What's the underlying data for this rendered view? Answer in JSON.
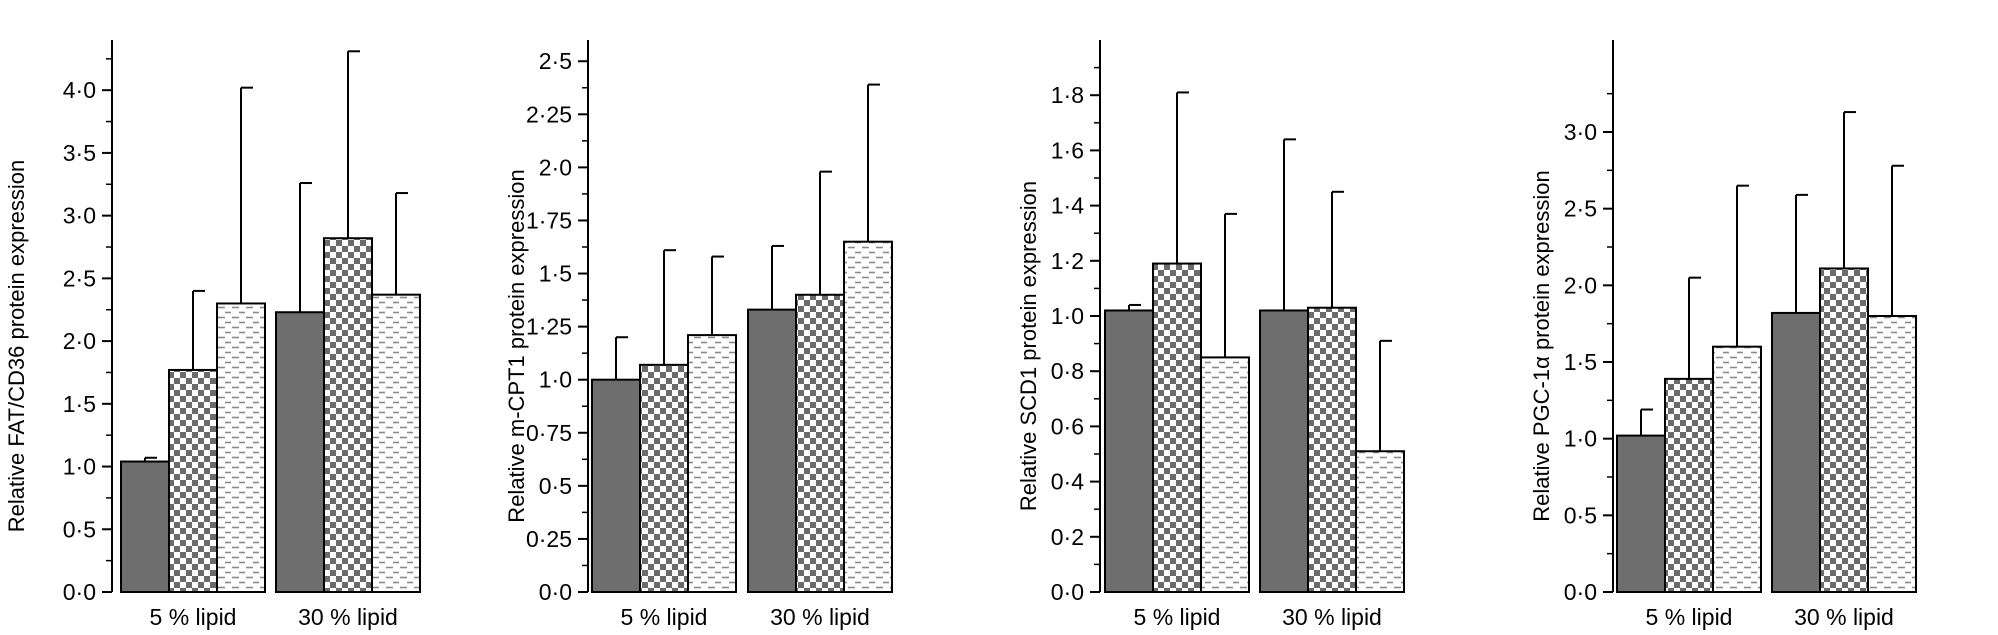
{
  "chart_data": [
    {
      "type": "bar",
      "ylabel": "Relative FAT/CD36 protein expression",
      "categories": [
        "5 % lipid",
        "30 % lipid"
      ],
      "ylim": [
        0,
        4.4
      ],
      "major_ticks": [
        0,
        0.5,
        1,
        1.5,
        2,
        2.5,
        3,
        3.5,
        4
      ],
      "tick_labels": [
        "0·0",
        "0·5",
        "1·0",
        "1·5",
        "2·0",
        "2·5",
        "3·0",
        "3·5",
        "4·0"
      ],
      "series": [
        {
          "name": "series-1",
          "pattern": "solid",
          "values": [
            1.04,
            2.23
          ],
          "errors": [
            0.03,
            1.03
          ]
        },
        {
          "name": "series-2",
          "pattern": "checker",
          "values": [
            1.77,
            2.82
          ],
          "errors": [
            0.63,
            1.49
          ]
        },
        {
          "name": "series-3",
          "pattern": "dashes",
          "values": [
            2.3,
            2.37
          ],
          "errors": [
            1.72,
            0.81
          ]
        }
      ]
    },
    {
      "type": "bar",
      "ylabel": "Relative m-CPT1 protein expression",
      "categories": [
        "5 % lipid",
        "30 % lipid"
      ],
      "ylim": [
        0,
        2.6
      ],
      "major_ticks": [
        0,
        0.25,
        0.5,
        0.75,
        1,
        1.25,
        1.5,
        1.75,
        2,
        2.25,
        2.5
      ],
      "tick_labels": [
        "0·0",
        "0·25",
        "0·5",
        "0·75",
        "1·0",
        "1·25",
        "1·5",
        "1·75",
        "2·0",
        "2·25",
        "2·5"
      ],
      "series": [
        {
          "name": "series-1",
          "pattern": "solid",
          "values": [
            1.0,
            1.33
          ],
          "errors": [
            0.2,
            0.3
          ]
        },
        {
          "name": "series-2",
          "pattern": "checker",
          "values": [
            1.07,
            1.4
          ],
          "errors": [
            0.54,
            0.58
          ]
        },
        {
          "name": "series-3",
          "pattern": "dashes",
          "values": [
            1.21,
            1.65
          ],
          "errors": [
            0.37,
            0.74
          ]
        }
      ]
    },
    {
      "type": "bar",
      "ylabel": "Relative SCD1 protein expression",
      "categories": [
        "5 % lipid",
        "30 % lipid"
      ],
      "ylim": [
        0,
        2.0
      ],
      "major_ticks": [
        0,
        0.2,
        0.4,
        0.6,
        0.8,
        1.0,
        1.2,
        1.4,
        1.6,
        1.8
      ],
      "tick_labels": [
        "0·0",
        "0·2",
        "0·4",
        "0·6",
        "0·8",
        "1·0",
        "1·2",
        "1·4",
        "1·6",
        "1·8"
      ],
      "series": [
        {
          "name": "series-1",
          "pattern": "solid",
          "values": [
            1.02,
            1.02
          ],
          "errors": [
            0.02,
            0.62
          ]
        },
        {
          "name": "series-2",
          "pattern": "checker",
          "values": [
            1.19,
            1.03
          ],
          "errors": [
            0.62,
            0.42
          ]
        },
        {
          "name": "series-3",
          "pattern": "dashes",
          "values": [
            0.85,
            0.51
          ],
          "errors": [
            0.52,
            0.4
          ]
        }
      ]
    },
    {
      "type": "bar",
      "ylabel": "Relative PGC-1α protein expression",
      "categories": [
        "5 % lipid",
        "30 % lipid"
      ],
      "ylim": [
        0,
        3.6
      ],
      "major_ticks": [
        0,
        0.5,
        1,
        1.5,
        2,
        2.5,
        3
      ],
      "tick_labels": [
        "0·0",
        "0·5",
        "1·0",
        "1·5",
        "2·0",
        "2·5",
        "3·0"
      ],
      "series": [
        {
          "name": "series-1",
          "pattern": "solid",
          "values": [
            1.02,
            1.82
          ],
          "errors": [
            0.17,
            0.77
          ]
        },
        {
          "name": "series-2",
          "pattern": "checker",
          "values": [
            1.39,
            2.11
          ],
          "errors": [
            0.66,
            1.02
          ]
        },
        {
          "name": "series-3",
          "pattern": "dashes",
          "values": [
            1.6,
            1.8
          ],
          "errors": [
            1.05,
            0.98
          ]
        }
      ]
    }
  ]
}
